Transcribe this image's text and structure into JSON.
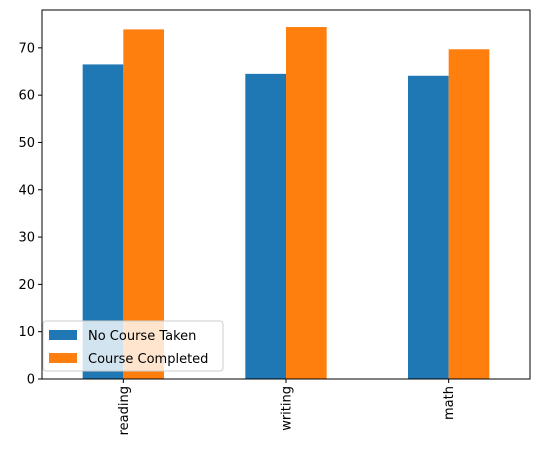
{
  "chart_data": {
    "type": "bar",
    "categories": [
      "reading",
      "writing",
      "math"
    ],
    "series": [
      {
        "name": "No Course Taken",
        "color": "#1f77b4",
        "values": [
          66.5,
          64.5,
          64.1
        ]
      },
      {
        "name": "Course Completed",
        "color": "#ff7f0e",
        "values": [
          73.9,
          74.4,
          69.7
        ]
      }
    ],
    "ylim": [
      0,
      78
    ],
    "yticks": [
      0,
      10,
      20,
      30,
      40,
      50,
      60,
      70
    ],
    "tick_labels": [
      "0",
      "10",
      "20",
      "30",
      "40",
      "50",
      "60",
      "70"
    ],
    "legend_position": "lower-left",
    "grid": false
  }
}
